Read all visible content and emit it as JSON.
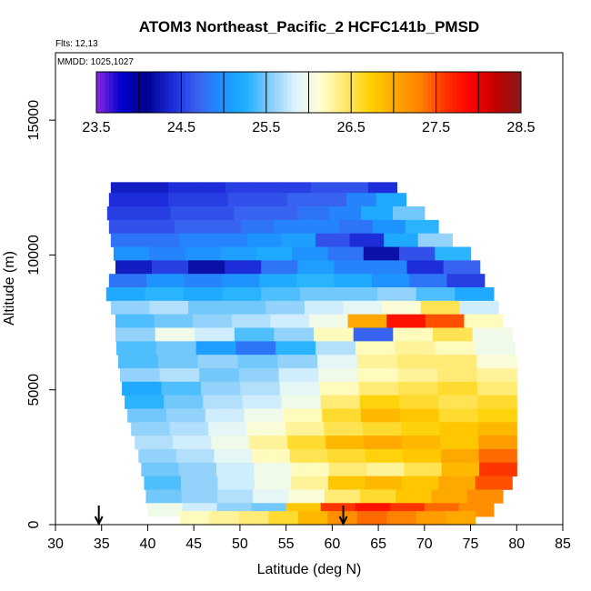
{
  "chart_data": {
    "type": "heatmap",
    "title": "ATOM3 Northeast_Pacific_2 HCFC141b_PMSD",
    "flights_label": "Flts: 12,13",
    "dates_label": "MMDD: 1025,1027",
    "xlabel": "Latitude (deg N)",
    "ylabel": "Altitude (m)",
    "xlim": [
      30,
      85
    ],
    "ylim": [
      0,
      17500
    ],
    "x_ticks": [
      30,
      35,
      40,
      45,
      50,
      55,
      60,
      65,
      70,
      75,
      80,
      85
    ],
    "y_ticks": [
      0,
      5000,
      10000,
      15000
    ],
    "x_tick_labels": [
      "30",
      "35",
      "40",
      "45",
      "50",
      "55",
      "60",
      "65",
      "70",
      "75",
      "80",
      "85"
    ],
    "y_tick_labels": [
      "0",
      "5000",
      "10000",
      "15000"
    ],
    "colorbar": {
      "range": [
        23.5,
        28.5
      ],
      "ticks": [
        23.5,
        24.5,
        25.5,
        26.5,
        27.5,
        28.5
      ],
      "tick_labels": [
        "23.5",
        "24.5",
        "25.5",
        "26.5",
        "27.5",
        "28.5"
      ],
      "colors": [
        "#8a2be2",
        "#0000cd",
        "#00008b",
        "#1a2ad8",
        "#3a5ff0",
        "#1e90ff",
        "#1fb0ff",
        "#87cefa",
        "#e0f4ff",
        "#ffffd0",
        "#ffe866",
        "#ffd000",
        "#ffa500",
        "#ff7f00",
        "#ff3000",
        "#ff0000",
        "#c00000",
        "#8b1a1a"
      ]
    },
    "markers": [
      {
        "lat": 34.7,
        "label": "arrow"
      },
      {
        "lat": 61.2,
        "label": "arrow"
      }
    ],
    "data_rows": [
      {
        "alt": 12200,
        "lat_min": 36.0,
        "lat_max": 67.0,
        "v": [
          24.3,
          24.3,
          24.4,
          24.4,
          24.5,
          24.5,
          24.5,
          24.6,
          24.6,
          24.4
        ]
      },
      {
        "alt": 11800,
        "lat_min": 35.8,
        "lat_max": 68.0,
        "v": [
          24.4,
          24.4,
          24.5,
          24.5,
          24.6,
          24.6,
          24.7,
          24.7,
          24.9,
          25.2
        ]
      },
      {
        "alt": 11300,
        "lat_min": 35.6,
        "lat_max": 70.0,
        "v": [
          24.5,
          24.5,
          24.6,
          24.6,
          24.7,
          24.7,
          24.8,
          24.9,
          25.2,
          25.5
        ]
      },
      {
        "alt": 10800,
        "lat_min": 35.8,
        "lat_max": 71.5,
        "v": [
          24.6,
          24.6,
          24.7,
          24.7,
          24.8,
          24.9,
          24.9,
          24.8,
          25.0,
          25.3
        ]
      },
      {
        "alt": 10300,
        "lat_min": 36.0,
        "lat_max": 73.0,
        "v": [
          24.8,
          24.8,
          24.9,
          24.9,
          25.0,
          25.1,
          24.6,
          24.4,
          25.2,
          25.6
        ]
      },
      {
        "alt": 9800,
        "lat_min": 36.3,
        "lat_max": 75.0,
        "v": [
          25.0,
          24.9,
          25.0,
          25.1,
          25.2,
          25.0,
          24.8,
          24.2,
          24.6,
          25.3
        ]
      },
      {
        "alt": 9300,
        "lat_min": 36.5,
        "lat_max": 76.0,
        "v": [
          24.3,
          24.5,
          24.2,
          24.4,
          24.8,
          25.1,
          24.9,
          24.9,
          24.4,
          24.7
        ]
      },
      {
        "alt": 8800,
        "lat_min": 35.8,
        "lat_max": 76.5,
        "v": [
          24.8,
          25.0,
          24.9,
          25.0,
          25.2,
          25.3,
          25.2,
          25.0,
          24.8,
          24.5
        ]
      },
      {
        "alt": 8300,
        "lat_min": 35.5,
        "lat_max": 77.5,
        "v": [
          25.2,
          25.3,
          25.2,
          25.3,
          25.4,
          25.5,
          25.5,
          25.6,
          25.4,
          25.2
        ]
      },
      {
        "alt": 7800,
        "lat_min": 36.0,
        "lat_max": 78.0,
        "v": [
          25.6,
          25.7,
          25.5,
          25.5,
          25.6,
          25.8,
          25.9,
          26.1,
          26.5,
          25.8
        ]
      },
      {
        "alt": 7300,
        "lat_min": 36.5,
        "lat_max": 78.5,
        "v": [
          25.4,
          25.5,
          25.6,
          25.7,
          25.8,
          26.0,
          27.0,
          27.8,
          27.5,
          26.2
        ]
      },
      {
        "alt": 6800,
        "lat_min": 36.5,
        "lat_max": 79.5,
        "v": [
          25.6,
          26.0,
          25.8,
          25.4,
          25.6,
          26.2,
          24.7,
          26.2,
          26.5,
          26.0
        ]
      },
      {
        "alt": 6300,
        "lat_min": 36.6,
        "lat_max": 79.8,
        "v": [
          25.4,
          25.5,
          25.1,
          24.8,
          25.3,
          25.7,
          26.2,
          26.3,
          26.2,
          26.0
        ]
      },
      {
        "alt": 5800,
        "lat_min": 36.8,
        "lat_max": 80.0,
        "v": [
          25.4,
          25.5,
          25.6,
          25.5,
          25.6,
          25.9,
          26.3,
          26.4,
          26.4,
          26.1
        ]
      },
      {
        "alt": 5300,
        "lat_min": 37.0,
        "lat_max": 80.0,
        "v": [
          25.6,
          25.7,
          25.5,
          25.6,
          25.8,
          26.0,
          26.2,
          26.3,
          26.4,
          26.3
        ]
      },
      {
        "alt": 4800,
        "lat_min": 37.2,
        "lat_max": 80.0,
        "v": [
          25.2,
          25.4,
          25.6,
          25.7,
          25.9,
          26.2,
          26.4,
          26.5,
          26.6,
          26.4
        ]
      },
      {
        "alt": 4300,
        "lat_min": 37.5,
        "lat_max": 80.0,
        "v": [
          25.3,
          25.5,
          25.7,
          25.8,
          26.0,
          26.4,
          26.7,
          26.6,
          26.5,
          26.6
        ]
      },
      {
        "alt": 3800,
        "lat_min": 37.8,
        "lat_max": 80.0,
        "v": [
          25.5,
          25.6,
          25.8,
          26.0,
          26.2,
          26.6,
          26.9,
          26.8,
          26.6,
          26.7
        ]
      },
      {
        "alt": 3300,
        "lat_min": 38.2,
        "lat_max": 80.0,
        "v": [
          25.6,
          25.7,
          25.9,
          26.1,
          26.3,
          26.5,
          26.6,
          26.7,
          26.8,
          26.9
        ]
      },
      {
        "alt": 2800,
        "lat_min": 38.6,
        "lat_max": 80.0,
        "v": [
          25.7,
          25.8,
          26.0,
          26.3,
          26.6,
          26.9,
          27.0,
          26.9,
          26.8,
          27.1
        ]
      },
      {
        "alt": 2300,
        "lat_min": 39.0,
        "lat_max": 80.0,
        "v": [
          25.6,
          25.7,
          25.9,
          26.2,
          26.5,
          26.6,
          26.7,
          26.8,
          27.0,
          27.4
        ]
      },
      {
        "alt": 1800,
        "lat_min": 39.3,
        "lat_max": 80.0,
        "v": [
          25.5,
          25.6,
          25.8,
          26.0,
          26.2,
          26.4,
          26.3,
          26.5,
          26.9,
          27.6
        ]
      },
      {
        "alt": 1300,
        "lat_min": 39.6,
        "lat_max": 79.5,
        "v": [
          25.4,
          25.6,
          25.8,
          26.0,
          26.3,
          26.8,
          26.9,
          26.8,
          27.0,
          27.5
        ]
      },
      {
        "alt": 800,
        "lat_min": 39.8,
        "lat_max": 78.5,
        "v": [
          25.5,
          25.6,
          25.7,
          25.9,
          26.1,
          26.4,
          26.6,
          26.8,
          27.0,
          27.2
        ]
      },
      {
        "alt": 300,
        "lat_min": 40.0,
        "lat_max": 77.5,
        "v": [
          26.0,
          25.8,
          25.6,
          25.5,
          26.8,
          27.6,
          27.8,
          27.6,
          27.4,
          27.2
        ]
      },
      {
        "alt": 0,
        "lat_min": 43.5,
        "lat_max": 75.5,
        "v": [
          26.2,
          26.3,
          26.4,
          26.6,
          26.9,
          27.2,
          27.4,
          27.3,
          27.1,
          27.0
        ]
      }
    ]
  }
}
